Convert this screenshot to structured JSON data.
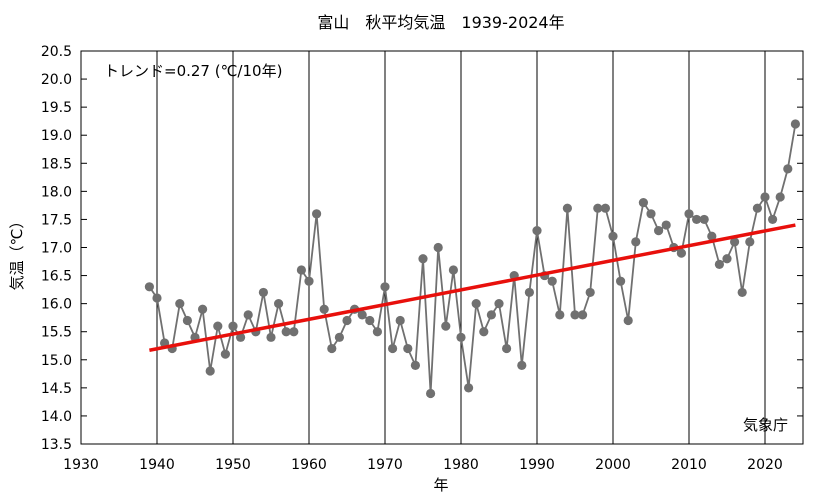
{
  "chart_data": {
    "type": "line",
    "title": "富山　秋平均気温　1939-2024年",
    "xlabel": "年",
    "ylabel": "気温（℃）",
    "trend_label": "トレンド=0.27 (℃/10年)",
    "source_label": "気象庁",
    "xlim": [
      1930,
      2025
    ],
    "ylim": [
      13.5,
      20.5
    ],
    "x_ticks": [
      1930,
      1940,
      1950,
      1960,
      1970,
      1980,
      1990,
      2000,
      2010,
      2020
    ],
    "y_ticks": [
      13.5,
      14.0,
      14.5,
      15.0,
      15.5,
      16.0,
      16.5,
      17.0,
      17.5,
      18.0,
      18.5,
      19.0,
      19.5,
      20.0,
      20.5
    ],
    "series": [
      {
        "name": "秋平均気温",
        "color": "#707070",
        "x": [
          1939,
          1940,
          1941,
          1942,
          1943,
          1944,
          1945,
          1946,
          1947,
          1948,
          1949,
          1950,
          1951,
          1952,
          1953,
          1954,
          1955,
          1956,
          1957,
          1958,
          1959,
          1960,
          1961,
          1962,
          1963,
          1964,
          1965,
          1966,
          1967,
          1968,
          1969,
          1970,
          1971,
          1972,
          1973,
          1974,
          1975,
          1976,
          1977,
          1978,
          1979,
          1980,
          1981,
          1982,
          1983,
          1984,
          1985,
          1986,
          1987,
          1988,
          1989,
          1990,
          1991,
          1992,
          1993,
          1994,
          1995,
          1996,
          1997,
          1998,
          1999,
          2000,
          2001,
          2002,
          2003,
          2004,
          2005,
          2006,
          2007,
          2008,
          2009,
          2010,
          2011,
          2012,
          2013,
          2014,
          2015,
          2016,
          2017,
          2018,
          2019,
          2020,
          2021,
          2022,
          2023,
          2024
        ],
        "values": [
          16.3,
          16.1,
          15.3,
          15.2,
          16.0,
          15.7,
          15.4,
          15.9,
          14.8,
          15.6,
          15.1,
          15.6,
          15.4,
          15.8,
          15.5,
          16.2,
          15.4,
          16.0,
          15.5,
          15.5,
          16.6,
          16.4,
          17.6,
          15.9,
          15.2,
          15.4,
          15.7,
          15.9,
          15.8,
          15.7,
          15.5,
          16.3,
          15.2,
          15.7,
          15.2,
          14.9,
          16.8,
          14.4,
          17.0,
          15.6,
          16.6,
          15.4,
          14.5,
          16.0,
          15.5,
          15.8,
          16.0,
          15.2,
          16.5,
          14.9,
          16.2,
          17.3,
          16.5,
          16.4,
          15.8,
          17.7,
          15.8,
          15.8,
          16.2,
          17.7,
          17.7,
          17.2,
          16.4,
          15.7,
          17.1,
          17.8,
          17.6,
          17.3,
          17.4,
          17.0,
          16.9,
          17.6,
          17.5,
          17.5,
          17.2,
          16.7,
          16.8,
          17.1,
          16.2,
          17.1,
          17.7,
          17.9,
          17.5,
          17.9,
          18.4,
          19.2
        ]
      }
    ],
    "trend": {
      "color": "#e8100c",
      "x": [
        1939,
        2024
      ],
      "y": [
        15.17,
        17.4
      ]
    }
  }
}
